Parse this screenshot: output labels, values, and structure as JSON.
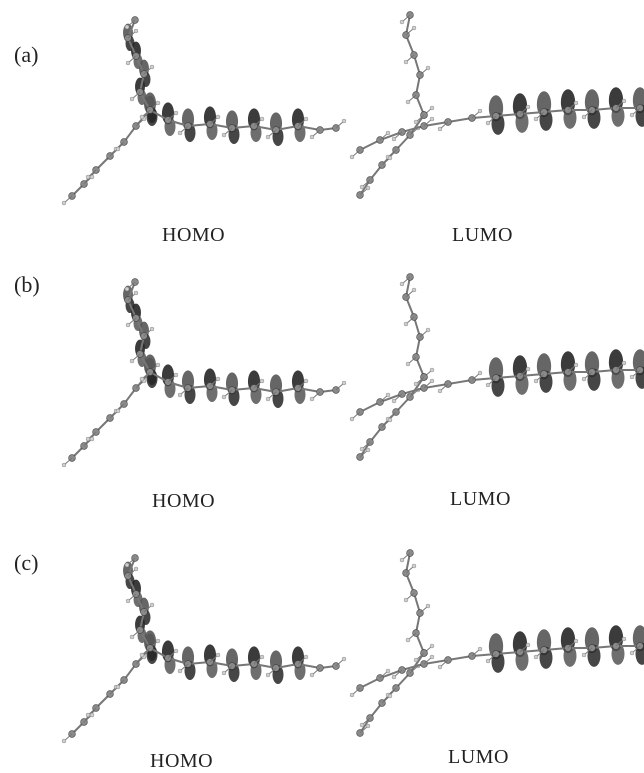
{
  "figure": {
    "panels": [
      {
        "label": "(a)",
        "left_caption": "HOMO",
        "right_caption": "LUMO"
      },
      {
        "label": "(b)",
        "left_caption": "HOMO",
        "right_caption": "LUMO"
      },
      {
        "label": "(c)",
        "left_caption": "HOMO",
        "right_caption": "LUMO"
      }
    ]
  },
  "colors": {
    "lobe_dark": "#262626",
    "lobe_mid": "#555555",
    "bond": "#777777",
    "atom": "#8a8a8a",
    "hydrogen": "#cfcfcf"
  }
}
